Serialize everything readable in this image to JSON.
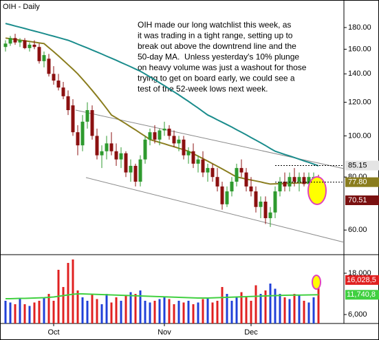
{
  "chart_data": {
    "type": "candlestick",
    "title": "OIH - Daily",
    "annotation": [
      "OIH made our long watchlist this week, as",
      "it was trading in a tight range, setting up to",
      "break out above the downtrend line and the",
      "50-day MA.  Unless yesterday's 10% plunge",
      "on heavy volume was just a washout for those",
      "trying to get on board early, we could see a",
      "test of the 52-week lows next week."
    ],
    "categories": [
      null,
      null,
      null,
      null,
      null,
      null,
      null,
      null,
      null,
      null,
      "Oct",
      null,
      null,
      null,
      null,
      null,
      null,
      null,
      null,
      null,
      null,
      null,
      null,
      null,
      null,
      null,
      null,
      null,
      null,
      null,
      null,
      null,
      null,
      "Nov",
      null,
      null,
      null,
      null,
      null,
      null,
      null,
      null,
      null,
      null,
      null,
      null,
      null,
      null,
      null,
      null,
      null,
      "Dec",
      null,
      null,
      null,
      null,
      null,
      null,
      null,
      null,
      null,
      null,
      null,
      null,
      null,
      null
    ],
    "open": [
      162,
      165,
      170,
      166,
      168,
      161,
      164,
      162,
      150,
      152,
      140,
      135,
      130,
      124,
      118,
      102,
      95,
      108,
      115,
      100,
      90,
      92,
      96,
      92,
      88,
      91,
      82,
      85,
      78,
      88,
      98,
      102,
      98,
      103,
      104,
      100,
      96,
      98,
      90,
      92,
      86,
      88,
      82,
      84,
      80,
      76,
      69,
      74,
      78,
      84,
      82,
      76,
      74,
      68,
      70,
      64,
      66,
      74,
      78,
      76,
      80,
      78,
      80,
      77,
      79,
      80
    ],
    "high": [
      168,
      172,
      174,
      170,
      170,
      166,
      168,
      165,
      158,
      156,
      146,
      140,
      134,
      128,
      122,
      106,
      112,
      120,
      118,
      104,
      95,
      100,
      102,
      96,
      94,
      92,
      88,
      86,
      90,
      100,
      104,
      106,
      104,
      108,
      106,
      103,
      100,
      100,
      94,
      96,
      90,
      92,
      86,
      86,
      84,
      78,
      76,
      80,
      86,
      88,
      84,
      80,
      76,
      72,
      72,
      68,
      76,
      80,
      82,
      82,
      84,
      82,
      82,
      82,
      82,
      81
    ],
    "low": [
      158,
      163,
      164,
      162,
      160,
      158,
      160,
      148,
      145,
      138,
      132,
      128,
      122,
      112,
      100,
      90,
      92,
      104,
      98,
      88,
      84,
      88,
      90,
      85,
      84,
      80,
      78,
      76,
      76,
      86,
      95,
      96,
      95,
      100,
      98,
      94,
      92,
      88,
      86,
      84,
      82,
      80,
      78,
      78,
      74,
      67,
      68,
      72,
      76,
      80,
      74,
      72,
      66,
      64,
      62,
      61,
      64,
      72,
      74,
      74,
      76,
      74,
      76,
      76,
      77,
      69
    ],
    "close": [
      165,
      170,
      166,
      168,
      161,
      164,
      162,
      150,
      155,
      140,
      135,
      130,
      124,
      115,
      102,
      95,
      108,
      115,
      100,
      90,
      92,
      96,
      92,
      88,
      91,
      82,
      85,
      78,
      88,
      98,
      102,
      98,
      103,
      104,
      100,
      96,
      98,
      90,
      92,
      86,
      88,
      82,
      84,
      80,
      76,
      69,
      74,
      78,
      84,
      82,
      76,
      74,
      68,
      70,
      64,
      66,
      74,
      78,
      76,
      80,
      78,
      80,
      77,
      80,
      80,
      70.51
    ],
    "up_color": "#2e9a2e",
    "down_color": "#8b1010",
    "log_scale": true,
    "ylim": [
      52.5,
      209
    ],
    "yticks": [
      {
        "value": 60,
        "label": "60.00"
      },
      {
        "value": 80,
        "label": "80.00"
      },
      {
        "value": 100,
        "label": "100.00"
      },
      {
        "value": 120,
        "label": "120.00"
      },
      {
        "value": 140,
        "label": "140.00"
      },
      {
        "value": 160,
        "label": "160.00"
      },
      {
        "value": 180,
        "label": "180.00"
      }
    ],
    "overlays": [
      {
        "color": "#1a8c8c",
        "values": [
          184,
          182.8,
          181.5,
          180.3,
          179.1,
          177.8,
          176.6,
          175.4,
          174.2,
          172.9,
          171.7,
          170.5,
          169.2,
          168,
          166.3,
          164.5,
          162.8,
          161.1,
          159.3,
          157.6,
          155.9,
          154.1,
          152.4,
          150.7,
          148.9,
          147.2,
          145.5,
          143.7,
          142,
          139.9,
          137.7,
          135.6,
          133.4,
          131.3,
          129.1,
          127,
          124.9,
          122.7,
          120.6,
          118.4,
          116.3,
          114.1,
          112,
          110.6,
          109.1,
          107.7,
          106.3,
          104.9,
          103.4,
          102,
          100.6,
          99.1,
          97.7,
          96.3,
          94.9,
          93.4,
          92,
          91.2,
          90.4,
          89.7,
          88.9,
          88.1,
          87.3,
          86.6,
          85.8,
          85
        ]
      },
      {
        "color": "#8a7d1e",
        "values": [
          170,
          169.4,
          168.8,
          168.1,
          167.5,
          166.9,
          166.3,
          165.6,
          165,
          161.4,
          157.9,
          154.3,
          150.7,
          147.1,
          143.6,
          140,
          136,
          132,
          128,
          124,
          120,
          116,
          112,
          110.3,
          108.5,
          106.8,
          105,
          103.3,
          101.5,
          99.8,
          98,
          97.3,
          96.5,
          95.8,
          95,
          94.3,
          93.5,
          92.8,
          92,
          90.8,
          89.6,
          88.4,
          87.2,
          86,
          84.8,
          83.6,
          82.4,
          81.2,
          80,
          79.6,
          79.1,
          78.7,
          78.3,
          77.9,
          77.4,
          77,
          77.1,
          77.2,
          77.2,
          77.3,
          77.4,
          77.5,
          77.5,
          77.6,
          77.7,
          77.8
        ]
      }
    ],
    "price_markers": {
      "values": [
        85.15,
        77.8,
        70.51
      ],
      "value_labels": [
        "85.15",
        "77.80",
        "70.51"
      ],
      "colors": [
        "#e4e4e4",
        "#8a7d1e",
        "#7a1010"
      ],
      "text_colors": [
        "#000000",
        "#ffffff",
        "#ffffff"
      ]
    },
    "volume": {
      "values": [
        10000,
        9500,
        9000,
        10500,
        9000,
        8500,
        9500,
        10000,
        11000,
        12000,
        10000,
        19000,
        14000,
        21000,
        22000,
        13000,
        11000,
        10000,
        12000,
        10500,
        9000,
        12000,
        9500,
        11000,
        10000,
        11500,
        12500,
        12000,
        13000,
        10000,
        9500,
        10000,
        10500,
        11000,
        10500,
        9000,
        10000,
        9500,
        10000,
        9000,
        9500,
        10500,
        11000,
        9500,
        10000,
        14000,
        12000,
        10000,
        11000,
        12500,
        11000,
        10000,
        14500,
        12000,
        13000,
        15000,
        13500,
        12000,
        11000,
        10500,
        12000,
        11500,
        10000,
        9500,
        11000,
        16028.5
      ],
      "up_color": "#2040d8",
      "down_color": "#e02020",
      "ylim": [
        3400,
        23000
      ],
      "yticks": [
        {
          "value": 6000,
          "label": "6,000"
        },
        {
          "value": 18000,
          "label": "18,000"
        }
      ],
      "ma": {
        "color": "#40d040",
        "values": [
          10600,
          10600,
          10650,
          10700,
          10700,
          10750,
          10800,
          10850,
          10900,
          11000,
          11100,
          11300,
          11500,
          11700,
          11900,
          12000,
          12000,
          11950,
          11900,
          11850,
          11800,
          11750,
          11700,
          11650,
          11600,
          11550,
          11500,
          11450,
          11400,
          11350,
          11300,
          11250,
          11200,
          11150,
          11100,
          11050,
          11000,
          10950,
          10900,
          10850,
          10800,
          10800,
          10800,
          10850,
          10900,
          10950,
          11000,
          11050,
          11100,
          11150,
          11200,
          11250,
          11300,
          11350,
          11400,
          11450,
          11500,
          11550,
          11600,
          11620,
          11640,
          11660,
          11680,
          11700,
          11720,
          11740.8
        ]
      },
      "markers": {
        "values": [
          16028.5,
          11740.8
        ],
        "value_labels": [
          "16,028,5",
          "11,740,8"
        ],
        "colors": [
          "#e02020",
          "#40d040"
        ]
      }
    }
  }
}
